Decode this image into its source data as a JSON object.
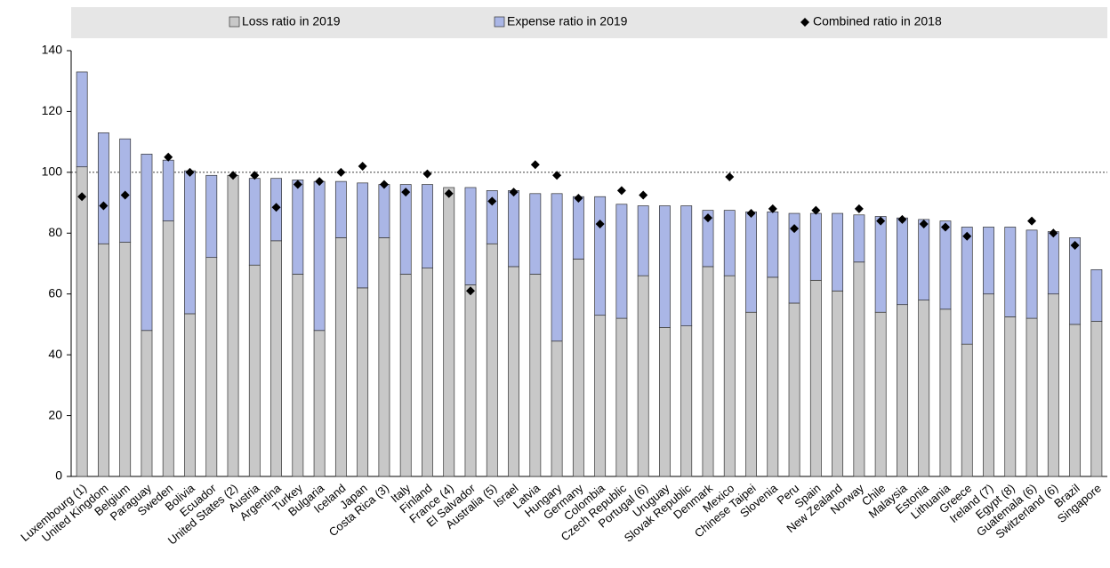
{
  "chart_data": {
    "type": "stacked-bar-scatter",
    "categories": [
      "Luxembourg (1)",
      "United Kingdom",
      "Belgium",
      "Paraguay",
      "Sweden",
      "Bolivia",
      "Ecuador",
      "United States (2)",
      "Austria",
      "Argentina",
      "Turkey",
      "Bulgaria",
      "Iceland",
      "Japan",
      "Costa Rica (3)",
      "Italy",
      "Finland",
      "France (4)",
      "El Salvador",
      "Australia (5)",
      "Israel",
      "Latvia",
      "Hungary",
      "Germany",
      "Colombia",
      "Czech Republic",
      "Portugal (6)",
      "Uruguay",
      "Slovak Republic",
      "Denmark",
      "Mexico",
      "Chinese Taipei",
      "Slovenia",
      "Peru",
      "Spain",
      "New Zealand",
      "Norway",
      "Chile",
      "Malaysia",
      "Estonia",
      "Lithuania",
      "Greece",
      "Ireland (7)",
      "Egypt (8)",
      "Guatemala (6)",
      "Switzerland (6)",
      "Brazil",
      "Singapore"
    ],
    "series": [
      {
        "name": "Loss ratio in 2019",
        "color": "#c8c8c8",
        "values": [
          101.8,
          76.5,
          77,
          48,
          84,
          53.5,
          72,
          99,
          69.5,
          77.5,
          66.5,
          48,
          78.5,
          62,
          78.5,
          66.5,
          68.5,
          95,
          63,
          76.5,
          69,
          66.5,
          44.5,
          71.5,
          53,
          52,
          66,
          49,
          49.5,
          69,
          66,
          54,
          65.5,
          57,
          64.5,
          61,
          70.5,
          54,
          56.5,
          58,
          55,
          43.5,
          60,
          52.5,
          52,
          60,
          50,
          51
        ]
      },
      {
        "name": "Expense ratio in 2019",
        "color": "#aab6e6",
        "values": [
          31.2,
          36.5,
          34,
          58,
          20,
          47,
          27,
          null,
          28.5,
          20.5,
          31,
          49,
          18.5,
          34.5,
          17.5,
          29.5,
          27.5,
          null,
          32,
          17.5,
          25,
          26.5,
          48.5,
          20.5,
          39,
          37.5,
          23,
          40,
          39.5,
          18.5,
          21.5,
          33,
          21.5,
          29.5,
          22,
          25.5,
          15.5,
          31.5,
          28.5,
          26.5,
          29,
          38.5,
          22,
          29.5,
          29,
          20.5,
          28.5,
          17
        ]
      },
      {
        "name": "Combined ratio in 2018",
        "color": "#000000",
        "type": "scatter",
        "values": [
          92,
          89,
          92.5,
          null,
          105,
          100,
          null,
          99,
          99,
          88.5,
          96,
          97,
          100,
          102,
          96,
          93.5,
          99.5,
          93,
          61,
          90.5,
          93.5,
          102.5,
          99,
          91.5,
          83,
          94,
          92.5,
          null,
          null,
          85,
          98.5,
          86.5,
          88,
          81.5,
          87.5,
          null,
          88,
          84,
          84.5,
          83,
          82,
          79,
          null,
          null,
          84,
          80,
          76,
          null
        ]
      }
    ],
    "ylim": [
      0,
      140
    ],
    "yticks": [
      0,
      20,
      40,
      60,
      80,
      100,
      120,
      140
    ],
    "reference_line": 100
  }
}
